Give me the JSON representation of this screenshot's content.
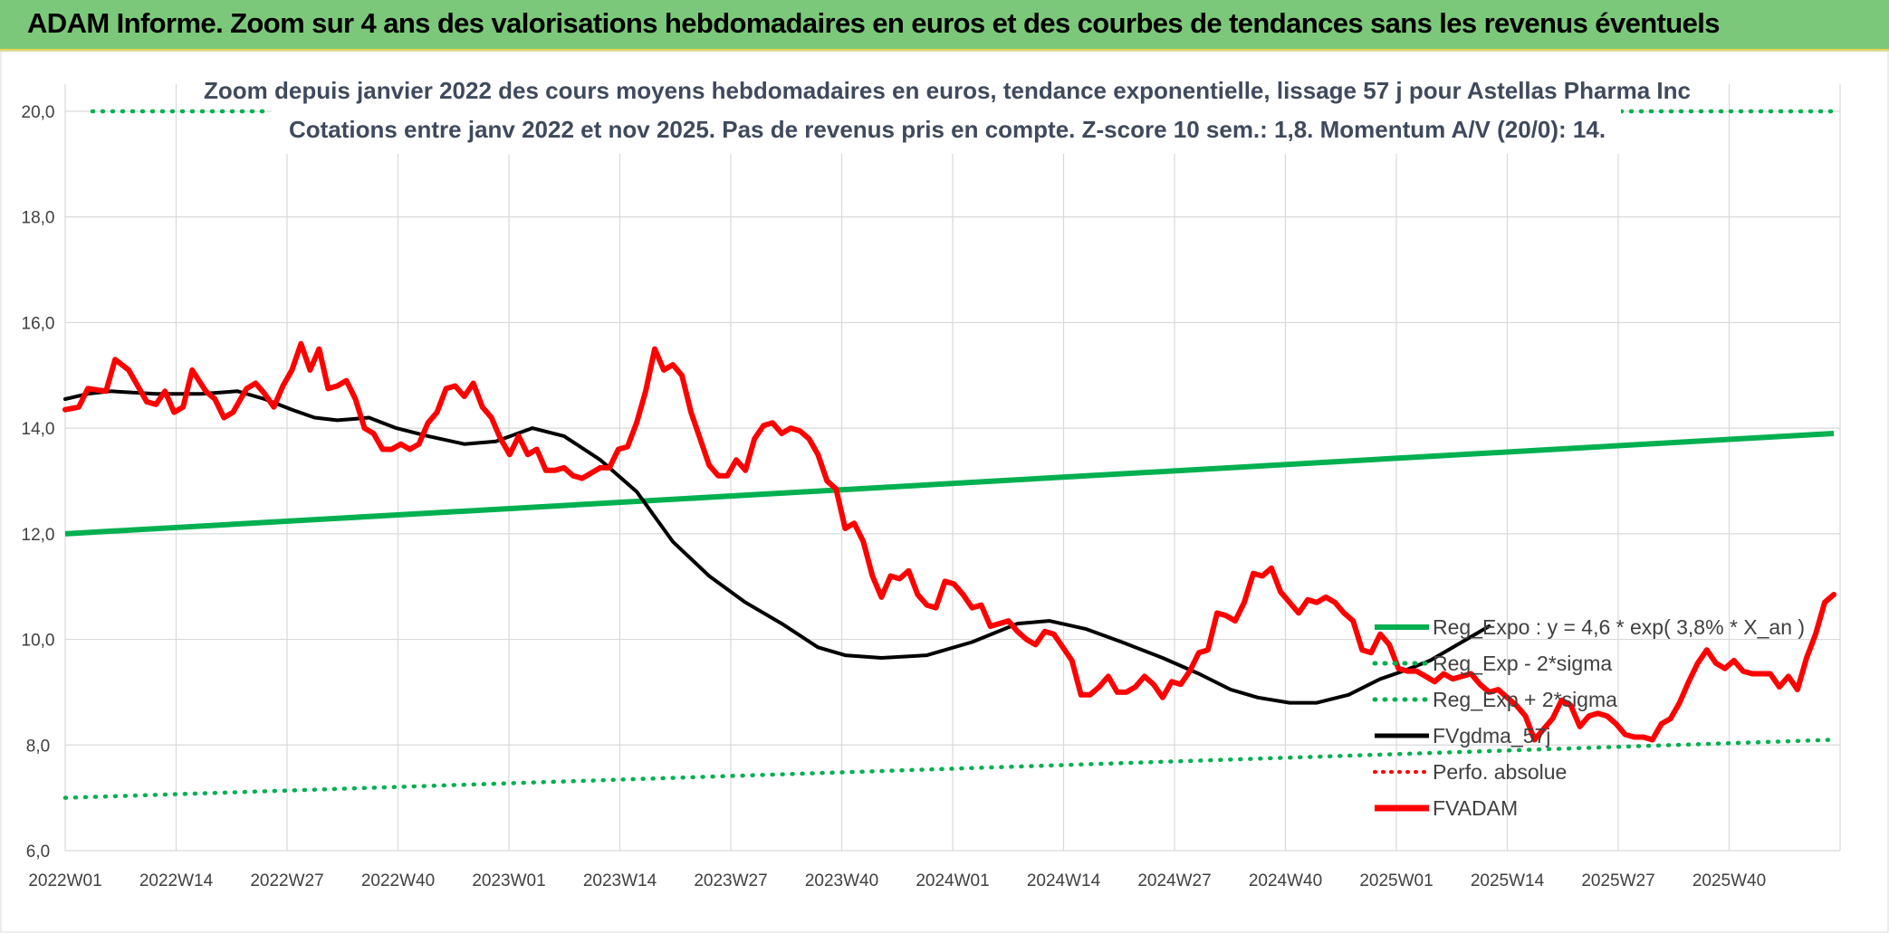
{
  "header": {
    "title": "ADAM Informe. Zoom sur 4 ans des valorisations hebdomadaires en euros et des courbes de tendances sans les revenus éventuels"
  },
  "colors": {
    "header_bg": "#7cc87a",
    "trend": "#00b050",
    "fvgdma": "#000000",
    "fvadam": "#ff0000",
    "perfo": "#ff0000",
    "title_text": "#3f4a5c"
  },
  "chart_data": {
    "type": "line",
    "title_line1": "Zoom depuis janvier 2022 des cours moyens hebdomadaires en euros, tendance exponentielle, lissage 57 j pour Astellas Pharma Inc",
    "title_line2": "Cotations entre janv 2022 et nov 2025. Pas de revenus pris en compte. Z-score 10 sem.: 1,8. Momentum A/V (20/0): 14.",
    "ylim": [
      6,
      20
    ],
    "y_ticks": [
      "6,0",
      "8,0",
      "10,0",
      "12,0",
      "14,0",
      "16,0",
      "18,0",
      "20,0"
    ],
    "x_count": 200,
    "x_tick_labels": [
      "2022W01",
      "2022W14",
      "2022W27",
      "2022W40",
      "2023W01",
      "2023W14",
      "2023W27",
      "2023W40",
      "2024W01",
      "2024W14",
      "2024W27",
      "2024W40",
      "2025W01",
      "2025W14",
      "2025W27",
      "2025W40"
    ],
    "legend": [
      {
        "label": "Reg_Expo : y = 4,6 * exp( 3,8% *  X_an )",
        "style": "solid-green"
      },
      {
        "label": "Reg_Exp - 2*sigma",
        "style": "dotted-green"
      },
      {
        "label": "Reg_Exp + 2*sigma",
        "style": "dotted-green"
      },
      {
        "label": "FVgdma_57j",
        "style": "solid-black"
      },
      {
        "label": "Perfo. absolue",
        "style": "dotted-red"
      },
      {
        "label": "FVADAM",
        "style": "solid-red"
      }
    ],
    "series": [
      {
        "name": "Reg_Expo",
        "start": 12.0,
        "end": 13.9
      },
      {
        "name": "Reg_Exp - 2*sigma",
        "start": 7.0,
        "end": 8.1
      },
      {
        "name": "Reg_Exp + 2*sigma",
        "start": 20.0,
        "end": 20.0
      },
      {
        "name": "FVgdma_57j",
        "points": [
          [
            0,
            14.55
          ],
          [
            5,
            14.65
          ],
          [
            10,
            14.7
          ],
          [
            20,
            14.65
          ],
          [
            30,
            14.65
          ],
          [
            38,
            14.7
          ],
          [
            44,
            14.55
          ],
          [
            50,
            14.35
          ],
          [
            55,
            14.2
          ],
          [
            60,
            14.15
          ],
          [
            67,
            14.2
          ],
          [
            73,
            14.0
          ],
          [
            80,
            13.85
          ],
          [
            88,
            13.7
          ],
          [
            95,
            13.75
          ],
          [
            103,
            14.0
          ],
          [
            110,
            13.85
          ],
          [
            118,
            13.4
          ],
          [
            126,
            12.8
          ],
          [
            134,
            11.85
          ],
          [
            142,
            11.2
          ],
          [
            150,
            10.7
          ],
          [
            158,
            10.3
          ],
          [
            166,
            9.85
          ],
          [
            172,
            9.7
          ],
          [
            180,
            9.65
          ],
          [
            190,
            9.7
          ],
          [
            200,
            9.95
          ],
          [
            210,
            10.3
          ],
          [
            217,
            10.35
          ],
          [
            225,
            10.2
          ],
          [
            233,
            9.95
          ],
          [
            242,
            9.65
          ],
          [
            250,
            9.35
          ],
          [
            257,
            9.05
          ],
          [
            263,
            8.9
          ],
          [
            270,
            8.8
          ],
          [
            276,
            8.8
          ],
          [
            283,
            8.95
          ],
          [
            290,
            9.25
          ],
          [
            295,
            9.4
          ],
          [
            301,
            9.6
          ],
          [
            308,
            9.95
          ],
          [
            314,
            10.25
          ]
        ]
      },
      {
        "name": "FVADAM",
        "points": [
          [
            0,
            14.35
          ],
          [
            3,
            14.4
          ],
          [
            5,
            14.75
          ],
          [
            9,
            14.7
          ],
          [
            11,
            15.3
          ],
          [
            14,
            15.1
          ],
          [
            18,
            14.5
          ],
          [
            20,
            14.45
          ],
          [
            22,
            14.7
          ],
          [
            24,
            14.3
          ],
          [
            26,
            14.4
          ],
          [
            28,
            15.1
          ],
          [
            31,
            14.7
          ],
          [
            33,
            14.55
          ],
          [
            35,
            14.2
          ],
          [
            37,
            14.3
          ],
          [
            40,
            14.75
          ],
          [
            42,
            14.85
          ],
          [
            44,
            14.65
          ],
          [
            46,
            14.4
          ],
          [
            48,
            14.8
          ],
          [
            50,
            15.1
          ],
          [
            52,
            15.6
          ],
          [
            54,
            15.1
          ],
          [
            56,
            15.5
          ],
          [
            58,
            14.75
          ],
          [
            60,
            14.8
          ],
          [
            62,
            14.9
          ],
          [
            64,
            14.55
          ],
          [
            66,
            14.0
          ],
          [
            68,
            13.9
          ],
          [
            70,
            13.6
          ],
          [
            72,
            13.6
          ],
          [
            74,
            13.7
          ],
          [
            76,
            13.6
          ],
          [
            78,
            13.7
          ],
          [
            80,
            14.1
          ],
          [
            82,
            14.3
          ],
          [
            84,
            14.75
          ],
          [
            86,
            14.8
          ],
          [
            88,
            14.6
          ],
          [
            90,
            14.85
          ],
          [
            92,
            14.4
          ],
          [
            94,
            14.2
          ],
          [
            96,
            13.8
          ],
          [
            98,
            13.5
          ],
          [
            100,
            13.85
          ],
          [
            102,
            13.5
          ],
          [
            104,
            13.6
          ],
          [
            106,
            13.2
          ],
          [
            108,
            13.2
          ],
          [
            110,
            13.25
          ],
          [
            112,
            13.1
          ],
          [
            114,
            13.05
          ],
          [
            116,
            13.15
          ],
          [
            118,
            13.25
          ],
          [
            120,
            13.25
          ],
          [
            122,
            13.6
          ],
          [
            124,
            13.65
          ],
          [
            126,
            14.1
          ],
          [
            128,
            14.7
          ],
          [
            130,
            15.5
          ],
          [
            132,
            15.1
          ],
          [
            134,
            15.2
          ],
          [
            136,
            15.0
          ],
          [
            138,
            14.3
          ],
          [
            140,
            13.8
          ],
          [
            142,
            13.3
          ],
          [
            144,
            13.1
          ],
          [
            146,
            13.1
          ],
          [
            148,
            13.4
          ],
          [
            150,
            13.2
          ],
          [
            152,
            13.8
          ],
          [
            154,
            14.05
          ],
          [
            156,
            14.1
          ],
          [
            158,
            13.9
          ],
          [
            160,
            14.0
          ],
          [
            162,
            13.95
          ],
          [
            164,
            13.8
          ],
          [
            166,
            13.5
          ],
          [
            168,
            13.0
          ],
          [
            170,
            12.85
          ],
          [
            172,
            12.1
          ],
          [
            174,
            12.2
          ],
          [
            176,
            11.85
          ],
          [
            178,
            11.2
          ],
          [
            180,
            10.8
          ],
          [
            182,
            11.2
          ],
          [
            184,
            11.15
          ],
          [
            186,
            11.3
          ],
          [
            188,
            10.85
          ],
          [
            190,
            10.65
          ],
          [
            192,
            10.6
          ],
          [
            194,
            11.1
          ],
          [
            196,
            11.05
          ],
          [
            198,
            10.85
          ],
          [
            200,
            10.6
          ],
          [
            202,
            10.65
          ],
          [
            204,
            10.25
          ],
          [
            206,
            10.3
          ],
          [
            208,
            10.35
          ],
          [
            210,
            10.15
          ],
          [
            212,
            10.0
          ],
          [
            214,
            9.9
          ],
          [
            216,
            10.15
          ],
          [
            218,
            10.1
          ],
          [
            220,
            9.85
          ],
          [
            222,
            9.6
          ],
          [
            224,
            8.95
          ],
          [
            226,
            8.95
          ],
          [
            228,
            9.1
          ],
          [
            230,
            9.3
          ],
          [
            232,
            9.0
          ],
          [
            234,
            9.0
          ],
          [
            236,
            9.1
          ],
          [
            238,
            9.3
          ],
          [
            240,
            9.15
          ],
          [
            242,
            8.9
          ],
          [
            244,
            9.2
          ],
          [
            246,
            9.15
          ],
          [
            248,
            9.4
          ],
          [
            250,
            9.75
          ],
          [
            252,
            9.8
          ],
          [
            254,
            10.5
          ],
          [
            256,
            10.45
          ],
          [
            258,
            10.35
          ],
          [
            260,
            10.7
          ],
          [
            262,
            11.25
          ],
          [
            264,
            11.2
          ],
          [
            266,
            11.35
          ],
          [
            268,
            10.9
          ],
          [
            270,
            10.7
          ],
          [
            272,
            10.5
          ],
          [
            274,
            10.75
          ],
          [
            276,
            10.7
          ],
          [
            278,
            10.8
          ],
          [
            280,
            10.7
          ],
          [
            282,
            10.5
          ],
          [
            284,
            10.35
          ],
          [
            286,
            9.8
          ],
          [
            288,
            9.75
          ],
          [
            290,
            10.1
          ],
          [
            292,
            9.9
          ],
          [
            294,
            9.45
          ],
          [
            296,
            9.4
          ],
          [
            298,
            9.4
          ],
          [
            300,
            9.3
          ],
          [
            302,
            9.2
          ],
          [
            304,
            9.35
          ],
          [
            306,
            9.25
          ],
          [
            308,
            9.3
          ],
          [
            310,
            9.35
          ],
          [
            312,
            9.15
          ],
          [
            314,
            9.0
          ],
          [
            316,
            9.05
          ],
          [
            318,
            8.9
          ],
          [
            320,
            8.75
          ],
          [
            322,
            8.55
          ],
          [
            324,
            8.1
          ],
          [
            326,
            8.3
          ],
          [
            328,
            8.5
          ],
          [
            330,
            8.85
          ],
          [
            332,
            8.75
          ],
          [
            334,
            8.35
          ],
          [
            336,
            8.55
          ],
          [
            338,
            8.6
          ],
          [
            340,
            8.55
          ],
          [
            342,
            8.4
          ],
          [
            344,
            8.2
          ],
          [
            346,
            8.15
          ],
          [
            348,
            8.15
          ],
          [
            350,
            8.1
          ],
          [
            352,
            8.4
          ],
          [
            354,
            8.5
          ],
          [
            356,
            8.8
          ],
          [
            358,
            9.2
          ],
          [
            360,
            9.55
          ],
          [
            362,
            9.8
          ],
          [
            364,
            9.55
          ],
          [
            366,
            9.45
          ],
          [
            368,
            9.6
          ],
          [
            370,
            9.4
          ],
          [
            372,
            9.35
          ],
          [
            374,
            9.35
          ],
          [
            376,
            9.35
          ],
          [
            378,
            9.1
          ],
          [
            380,
            9.3
          ],
          [
            382,
            9.05
          ],
          [
            384,
            9.65
          ],
          [
            386,
            10.1
          ],
          [
            388,
            10.7
          ],
          [
            390,
            10.85
          ]
        ]
      }
    ]
  }
}
